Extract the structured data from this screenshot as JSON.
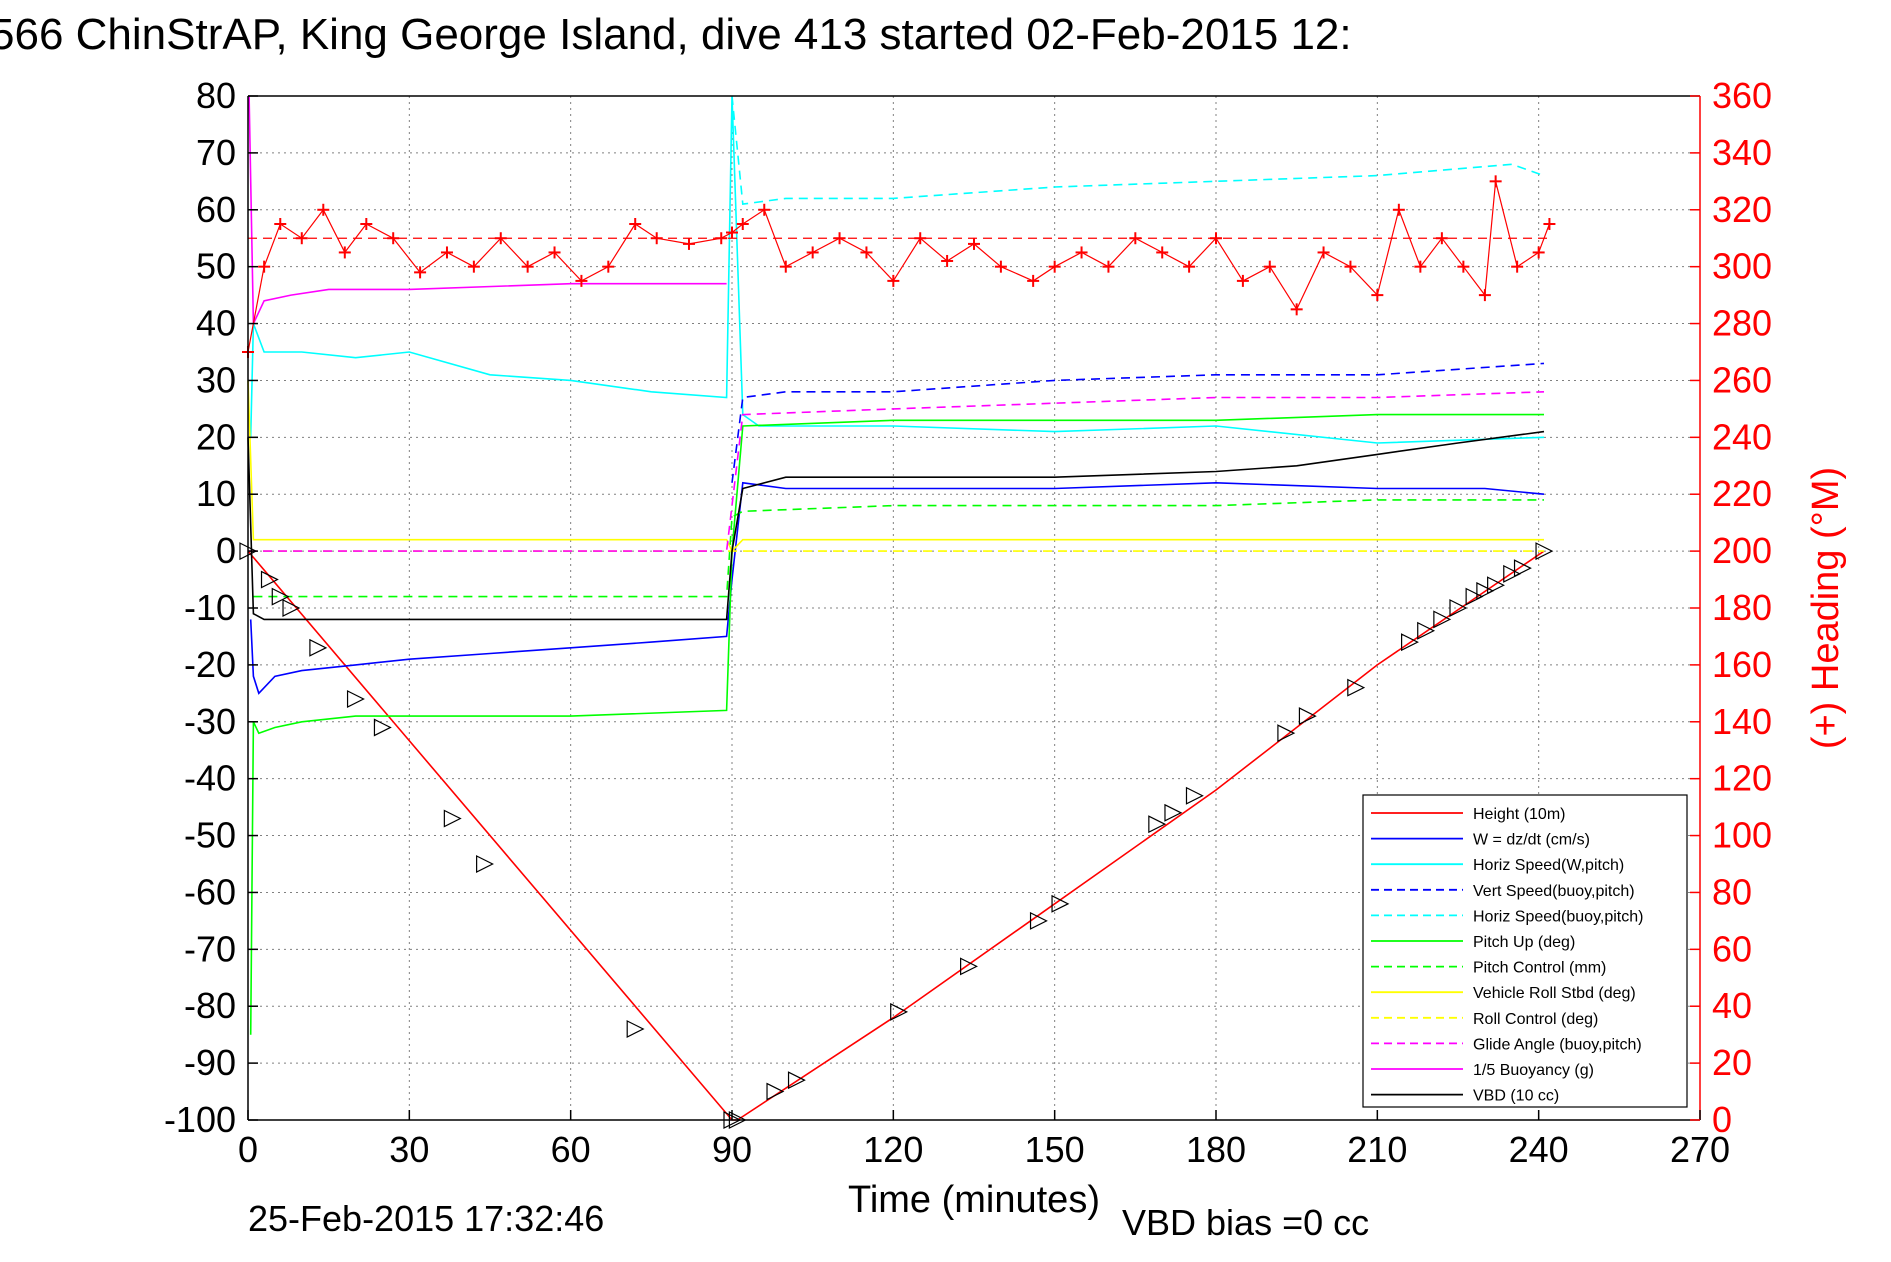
{
  "page": {
    "title": "566 ChinStrAP, King George Island, dive 413 started 02-Feb-2015 12:",
    "footer_date": "25-Feb-2015 17:32:46",
    "footer_vbd": "VBD bias =0 cc"
  },
  "chart_data": {
    "type": "line",
    "xlabel": "Time (minutes)",
    "ylabel": "",
    "y2label": "(+) Heading (°M)",
    "xlim": [
      0,
      270
    ],
    "ylim": [
      -100,
      80
    ],
    "y2lim": [
      0,
      360
    ],
    "xticks": [
      0,
      30,
      60,
      90,
      120,
      150,
      180,
      210,
      240,
      270
    ],
    "yticks": [
      -100,
      -90,
      -80,
      -70,
      -60,
      -50,
      -40,
      -30,
      -20,
      -10,
      0,
      10,
      20,
      30,
      40,
      50,
      60,
      70,
      80
    ],
    "y2ticks": [
      0,
      20,
      40,
      60,
      80,
      100,
      120,
      140,
      160,
      180,
      200,
      220,
      240,
      260,
      280,
      300,
      320,
      340,
      360
    ],
    "grid": true,
    "legend_position": "bottom-right",
    "colors": {
      "axis": "#000000",
      "right_axis": "#ff0000",
      "grid": "#808080"
    },
    "series": [
      {
        "name": "Height (10m)",
        "color": "#ff0000",
        "dash": "solid",
        "x": [
          0,
          90,
          91,
          120,
          150,
          180,
          210,
          241
        ],
        "y": [
          0,
          -100,
          -100,
          -82,
          -62,
          -42,
          -20,
          0
        ]
      },
      {
        "name": "W = dz/dt (cm/s)",
        "color": "#0000ff",
        "dash": "solid",
        "x": [
          0.5,
          1,
          2,
          5,
          10,
          20,
          30,
          45,
          60,
          75,
          89,
          90,
          92,
          100,
          120,
          150,
          180,
          210,
          230,
          241
        ],
        "y": [
          -12,
          -22,
          -25,
          -22,
          -21,
          -20,
          -19,
          -18,
          -17,
          -16,
          -15,
          -5,
          12,
          11,
          11,
          11,
          12,
          11,
          11,
          10
        ]
      },
      {
        "name": "Horiz Speed(W,pitch)",
        "color": "#00ffff",
        "dash": "solid",
        "x": [
          0.5,
          1,
          3,
          10,
          20,
          30,
          45,
          60,
          75,
          89,
          90,
          92,
          95,
          120,
          150,
          180,
          210,
          241
        ],
        "y": [
          20,
          40,
          35,
          35,
          34,
          35,
          31,
          30,
          28,
          27,
          80,
          24,
          22,
          22,
          21,
          22,
          19,
          20
        ]
      },
      {
        "name": "Vert Speed(buoy,pitch)",
        "color": "#0000ff",
        "dash": "dashed",
        "x": [
          90,
          92,
          100,
          120,
          150,
          180,
          210,
          241
        ],
        "y": [
          12,
          27,
          28,
          28,
          30,
          31,
          31,
          33
        ]
      },
      {
        "name": "Horiz Speed(buoy,pitch)",
        "color": "#00ffff",
        "dash": "dashed",
        "x": [
          90,
          92,
          100,
          120,
          150,
          180,
          210,
          235,
          241
        ],
        "y": [
          80,
          61,
          62,
          62,
          64,
          65,
          66,
          68,
          66
        ]
      },
      {
        "name": "Pitch Up (deg)",
        "color": "#00ff00",
        "dash": "solid",
        "x": [
          0.5,
          1,
          2,
          5,
          10,
          20,
          30,
          60,
          89,
          90,
          92,
          120,
          150,
          180,
          210,
          241
        ],
        "y": [
          -85,
          -30,
          -32,
          -31,
          -30,
          -29,
          -29,
          -29,
          -28,
          0,
          22,
          23,
          23,
          23,
          24,
          24
        ]
      },
      {
        "name": "Pitch Control (mm)",
        "color": "#00ff00",
        "dash": "dashed",
        "x": [
          1,
          20,
          45,
          89,
          90,
          92,
          120,
          150,
          180,
          210,
          241
        ],
        "y": [
          -8,
          -8,
          -8,
          -8,
          6,
          7,
          8,
          8,
          8,
          9,
          9
        ]
      },
      {
        "name": "Vehicle Roll Stbd (deg)",
        "color": "#ffff00",
        "dash": "solid",
        "x": [
          0,
          1,
          3,
          30,
          60,
          89,
          90,
          92,
          120,
          150,
          180,
          210,
          241
        ],
        "y": [
          30,
          2,
          2,
          2,
          2,
          2,
          0,
          2,
          2,
          2,
          2,
          2,
          2
        ]
      },
      {
        "name": "Roll Control (deg)",
        "color": "#ffff00",
        "dash": "dashed",
        "x": [
          0,
          1,
          30,
          60,
          89,
          90,
          120,
          150,
          180,
          210,
          241
        ],
        "y": [
          0,
          0,
          0,
          0,
          0,
          0,
          0,
          0,
          0,
          0,
          0
        ]
      },
      {
        "name": "Glide Angle (buoy,pitch)",
        "color": "#ff00ff",
        "dash": "dashed",
        "x": [
          0,
          89,
          92,
          120,
          150,
          180,
          210,
          241
        ],
        "y": [
          0,
          0,
          24,
          25,
          26,
          27,
          27,
          28
        ]
      },
      {
        "name": "1/5 Buoyancy (g)",
        "color": "#ff00ff",
        "dash": "solid",
        "x": [
          0.2,
          1,
          3,
          8,
          15,
          30,
          60,
          89
        ],
        "y": [
          80,
          40,
          44,
          45,
          46,
          46,
          47,
          47
        ]
      },
      {
        "name": "VBD (10 cc)",
        "color": "#000000",
        "dash": "solid",
        "x": [
          0,
          1,
          3,
          89,
          90,
          92,
          100,
          120,
          150,
          180,
          195,
          210,
          225,
          241
        ],
        "y": [
          20,
          -11,
          -12,
          -12,
          0,
          11,
          13,
          13,
          13,
          14,
          15,
          17,
          19,
          21
        ]
      }
    ],
    "heading_series": {
      "color": "#ff0000",
      "marker": "+",
      "axis": "right",
      "x": [
        0,
        3,
        6,
        10,
        14,
        18,
        22,
        27,
        32,
        37,
        42,
        47,
        52,
        57,
        62,
        67,
        72,
        76,
        82,
        88,
        90,
        92,
        96,
        100,
        105,
        110,
        115,
        120,
        125,
        130,
        135,
        140,
        146,
        150,
        155,
        160,
        165,
        170,
        175,
        180,
        185,
        190,
        195,
        200,
        205,
        210,
        214,
        218,
        222,
        226,
        230,
        232,
        236,
        240,
        242
      ],
      "y": [
        270,
        300,
        315,
        310,
        320,
        305,
        315,
        310,
        298,
        305,
        300,
        310,
        300,
        305,
        295,
        300,
        315,
        310,
        308,
        310,
        312,
        315,
        320,
        300,
        305,
        310,
        305,
        295,
        310,
        302,
        308,
        300,
        295,
        300,
        305,
        300,
        310,
        305,
        300,
        310,
        295,
        300,
        285,
        305,
        300,
        290,
        320,
        300,
        310,
        300,
        290,
        330,
        300,
        305,
        315
      ]
    },
    "dashed_reference_heading": 310,
    "markers": {
      "name": "triangle-markers",
      "x": [
        0,
        4,
        6,
        8,
        13,
        20,
        25,
        38,
        44,
        72,
        90,
        91,
        98,
        102,
        121,
        134,
        147,
        151,
        169,
        172,
        176,
        193,
        197,
        206,
        216,
        219,
        222,
        225,
        228,
        230,
        232,
        235,
        237,
        241
      ],
      "y": [
        0,
        -5,
        -8,
        -10,
        -17,
        -26,
        -31,
        -47,
        -55,
        -84,
        -100,
        -100,
        -95,
        -93,
        -81,
        -73,
        -65,
        -62,
        -48,
        -46,
        -43,
        -32,
        -29,
        -24,
        -16,
        -14,
        -12,
        -10,
        -8,
        -7,
        -6,
        -4,
        -3,
        0
      ]
    }
  }
}
